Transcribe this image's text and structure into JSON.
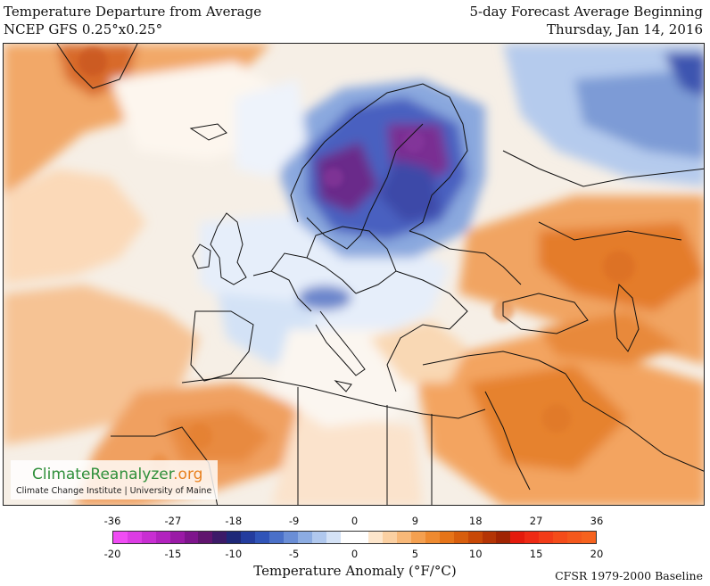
{
  "header": {
    "title_left_1": "Temperature Departure from Average",
    "title_left_2": "NCEP GFS 0.25°x0.25°",
    "title_right_1": "5-day Forecast Average Beginning",
    "title_right_2": "Thursday, Jan 14, 2016"
  },
  "watermark": {
    "brand_main": "ClimateReanalyzer",
    "brand_suffix": ".org",
    "affiliation": "Climate Change Institute | University of Maine"
  },
  "legend": {
    "fahrenheit_ticks": [
      "-36",
      "-27",
      "-18",
      "-9",
      "0",
      "9",
      "18",
      "27",
      "36"
    ],
    "celsius_ticks": [
      "-20",
      "-15",
      "-10",
      "-5",
      "0",
      "5",
      "10",
      "15",
      "20"
    ],
    "title": "Temperature Anomaly (°F/°C)",
    "baseline": "CFSR 1979-2000 Baseline",
    "colors": [
      "#f04cf4",
      "#dc3ce4",
      "#c82ed2",
      "#b222be",
      "#9a1aa6",
      "#7e148c",
      "#60146e",
      "#3c1a68",
      "#1e2878",
      "#243c9e",
      "#3054b8",
      "#4a70c8",
      "#6a8ed6",
      "#8cacE2",
      "#b0c8ee",
      "#d4e2f6",
      "#ffffff",
      "#ffffff",
      "#fde6cc",
      "#fbd0a2",
      "#f8b878",
      "#f4a050",
      "#ee8a30",
      "#e67418",
      "#d85e0c",
      "#c84806",
      "#b43404",
      "#a02402",
      "#e41a0c",
      "#ee2a14",
      "#f23c18",
      "#f44c1a",
      "#f4581c",
      "#f6621e"
    ]
  }
}
